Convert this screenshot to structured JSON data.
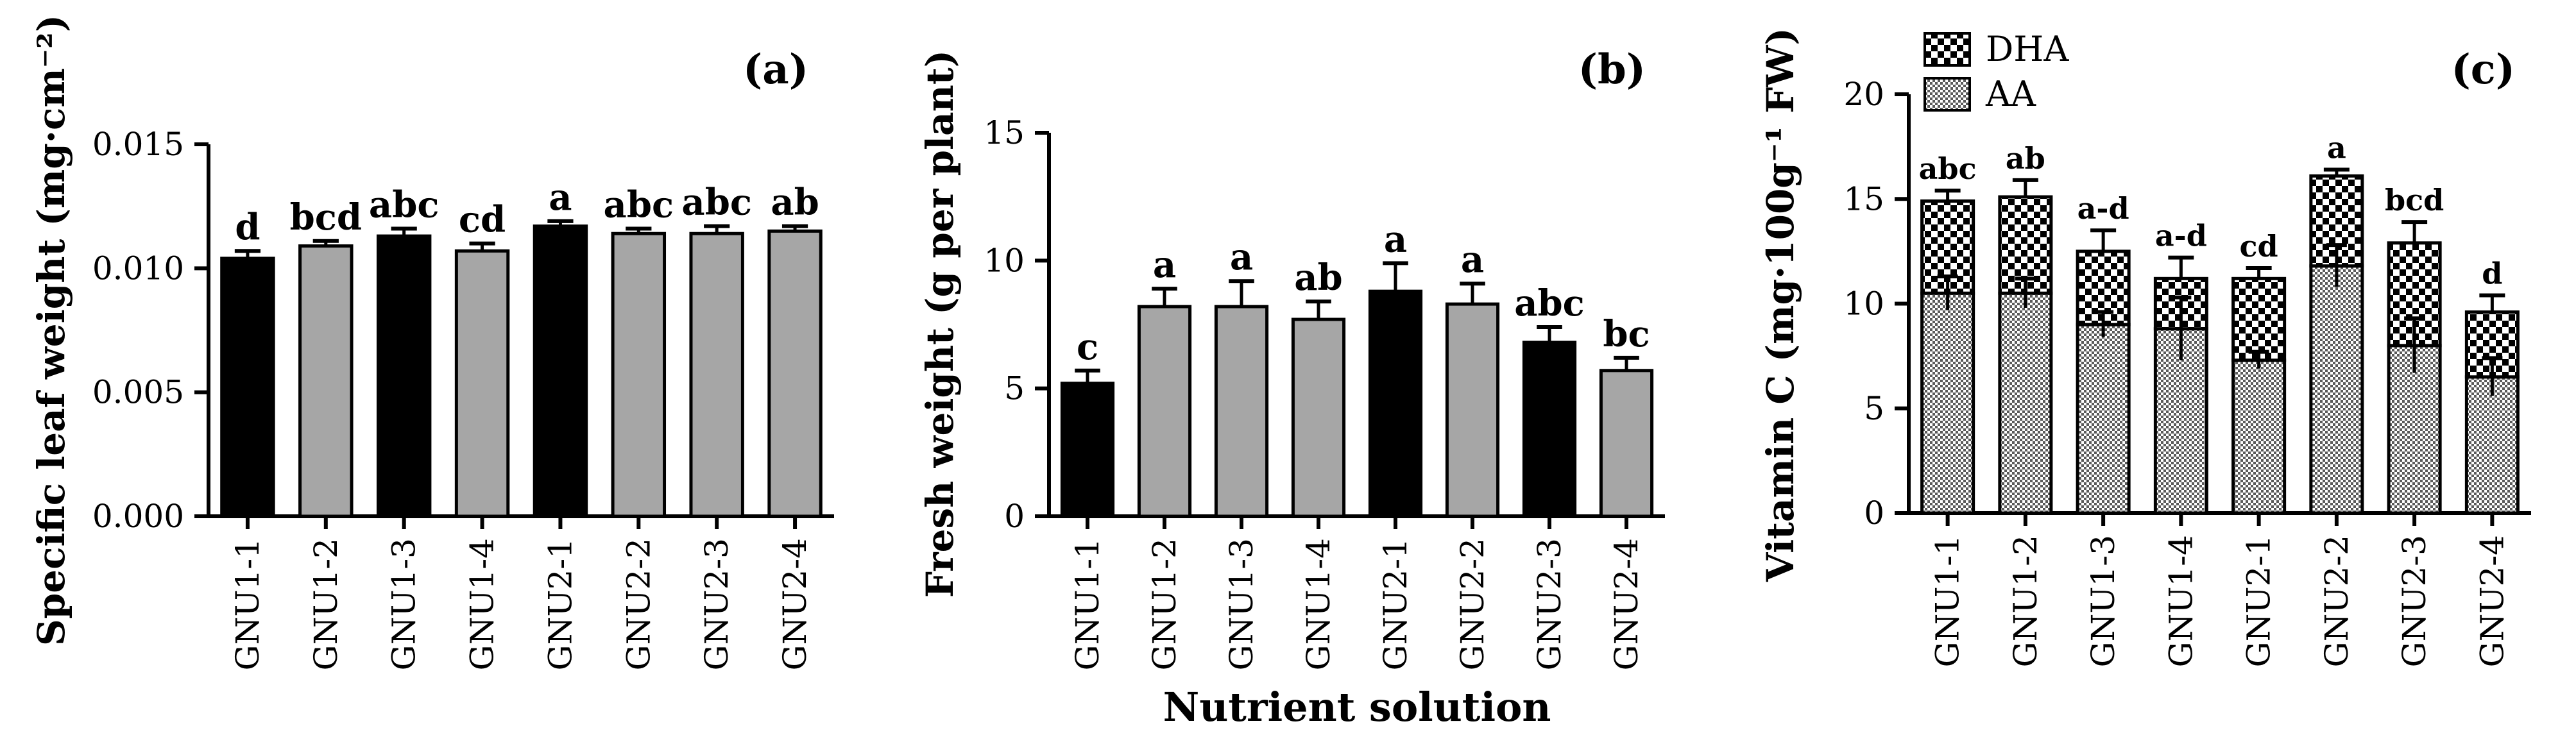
{
  "figure": {
    "xlabel": "Nutrient solution",
    "colors": {
      "black_bar": "#000000",
      "gray_bar": "#a6a6a6",
      "axis": "#000000"
    }
  },
  "chart_data": [
    {
      "type": "bar",
      "panel_label": "(a)",
      "categories": [
        "GNU1-1",
        "GNU1-2",
        "GNU1-3",
        "GNU1-4",
        "GNU2-1",
        "GNU2-2",
        "GNU2-3",
        "GNU2-4"
      ],
      "values": [
        0.0104,
        0.0109,
        0.0113,
        0.0107,
        0.0117,
        0.0114,
        0.0114,
        0.0115
      ],
      "errors": [
        0.0003,
        0.0002,
        0.0003,
        0.0003,
        0.0002,
        0.0002,
        0.0003,
        0.0002
      ],
      "bar_colors": [
        "black",
        "gray",
        "black",
        "gray",
        "black",
        "gray",
        "gray",
        "gray"
      ],
      "letters": [
        "d",
        "bcd",
        "abc",
        "cd",
        "a",
        "abc",
        "abc",
        "ab"
      ],
      "ylabel": "Specific leaf weight (mg·cm⁻²)",
      "ylim": [
        0,
        0.015
      ],
      "yticks": [
        "0.000",
        "0.005",
        "0.010",
        "0.015"
      ],
      "tick_values": [
        0,
        0.005,
        0.01,
        0.015
      ]
    },
    {
      "type": "bar",
      "panel_label": "(b)",
      "categories": [
        "GNU1-1",
        "GNU1-2",
        "GNU1-3",
        "GNU1-4",
        "GNU2-1",
        "GNU2-2",
        "GNU2-3",
        "GNU2-4"
      ],
      "values": [
        5.2,
        8.2,
        8.2,
        7.7,
        8.8,
        8.3,
        6.8,
        5.7
      ],
      "errors": [
        0.5,
        0.7,
        1.0,
        0.7,
        1.1,
        0.8,
        0.6,
        0.5
      ],
      "bar_colors": [
        "black",
        "gray",
        "gray",
        "gray",
        "black",
        "gray",
        "black",
        "gray"
      ],
      "letters": [
        "c",
        "a",
        "a",
        "ab",
        "a",
        "a",
        "abc",
        "bc"
      ],
      "ylabel": "Fresh weight (g per plant)",
      "ylim": [
        0,
        15
      ],
      "yticks": [
        "0",
        "5",
        "10",
        "15"
      ],
      "tick_values": [
        0,
        5,
        10,
        15
      ]
    },
    {
      "type": "bar",
      "stacked": true,
      "panel_label": "(c)",
      "categories": [
        "GNU1-1",
        "GNU1-2",
        "GNU1-3",
        "GNU1-4",
        "GNU2-1",
        "GNU2-2",
        "GNU2-3",
        "GNU2-4"
      ],
      "series": [
        {
          "name": "AA",
          "values": [
            10.5,
            10.5,
            9.0,
            8.8,
            7.3,
            11.8,
            8.0,
            6.5
          ],
          "errors": [
            0.8,
            0.7,
            0.6,
            1.5,
            0.4,
            1.0,
            1.3,
            0.9
          ]
        },
        {
          "name": "DHA",
          "values": [
            4.4,
            4.6,
            3.5,
            2.4,
            3.9,
            4.3,
            4.9,
            3.1
          ],
          "totals": [
            14.9,
            15.1,
            12.5,
            11.2,
            11.2,
            16.1,
            12.9,
            9.6
          ],
          "errors": [
            0.5,
            0.8,
            1.0,
            1.0,
            0.5,
            0.3,
            1.0,
            0.8
          ]
        }
      ],
      "letters": [
        "abc",
        "ab",
        "a-d",
        "a-d",
        "cd",
        "a",
        "bcd",
        "d"
      ],
      "ylabel": "Vitamin C (mg·100g⁻¹ FW)",
      "legend": [
        "DHA",
        "AA"
      ],
      "legend_position": "top-left",
      "ylim": [
        0,
        20
      ],
      "yticks": [
        "0",
        "5",
        "10",
        "15",
        "20"
      ],
      "tick_values": [
        0,
        5,
        10,
        15,
        20
      ]
    }
  ]
}
